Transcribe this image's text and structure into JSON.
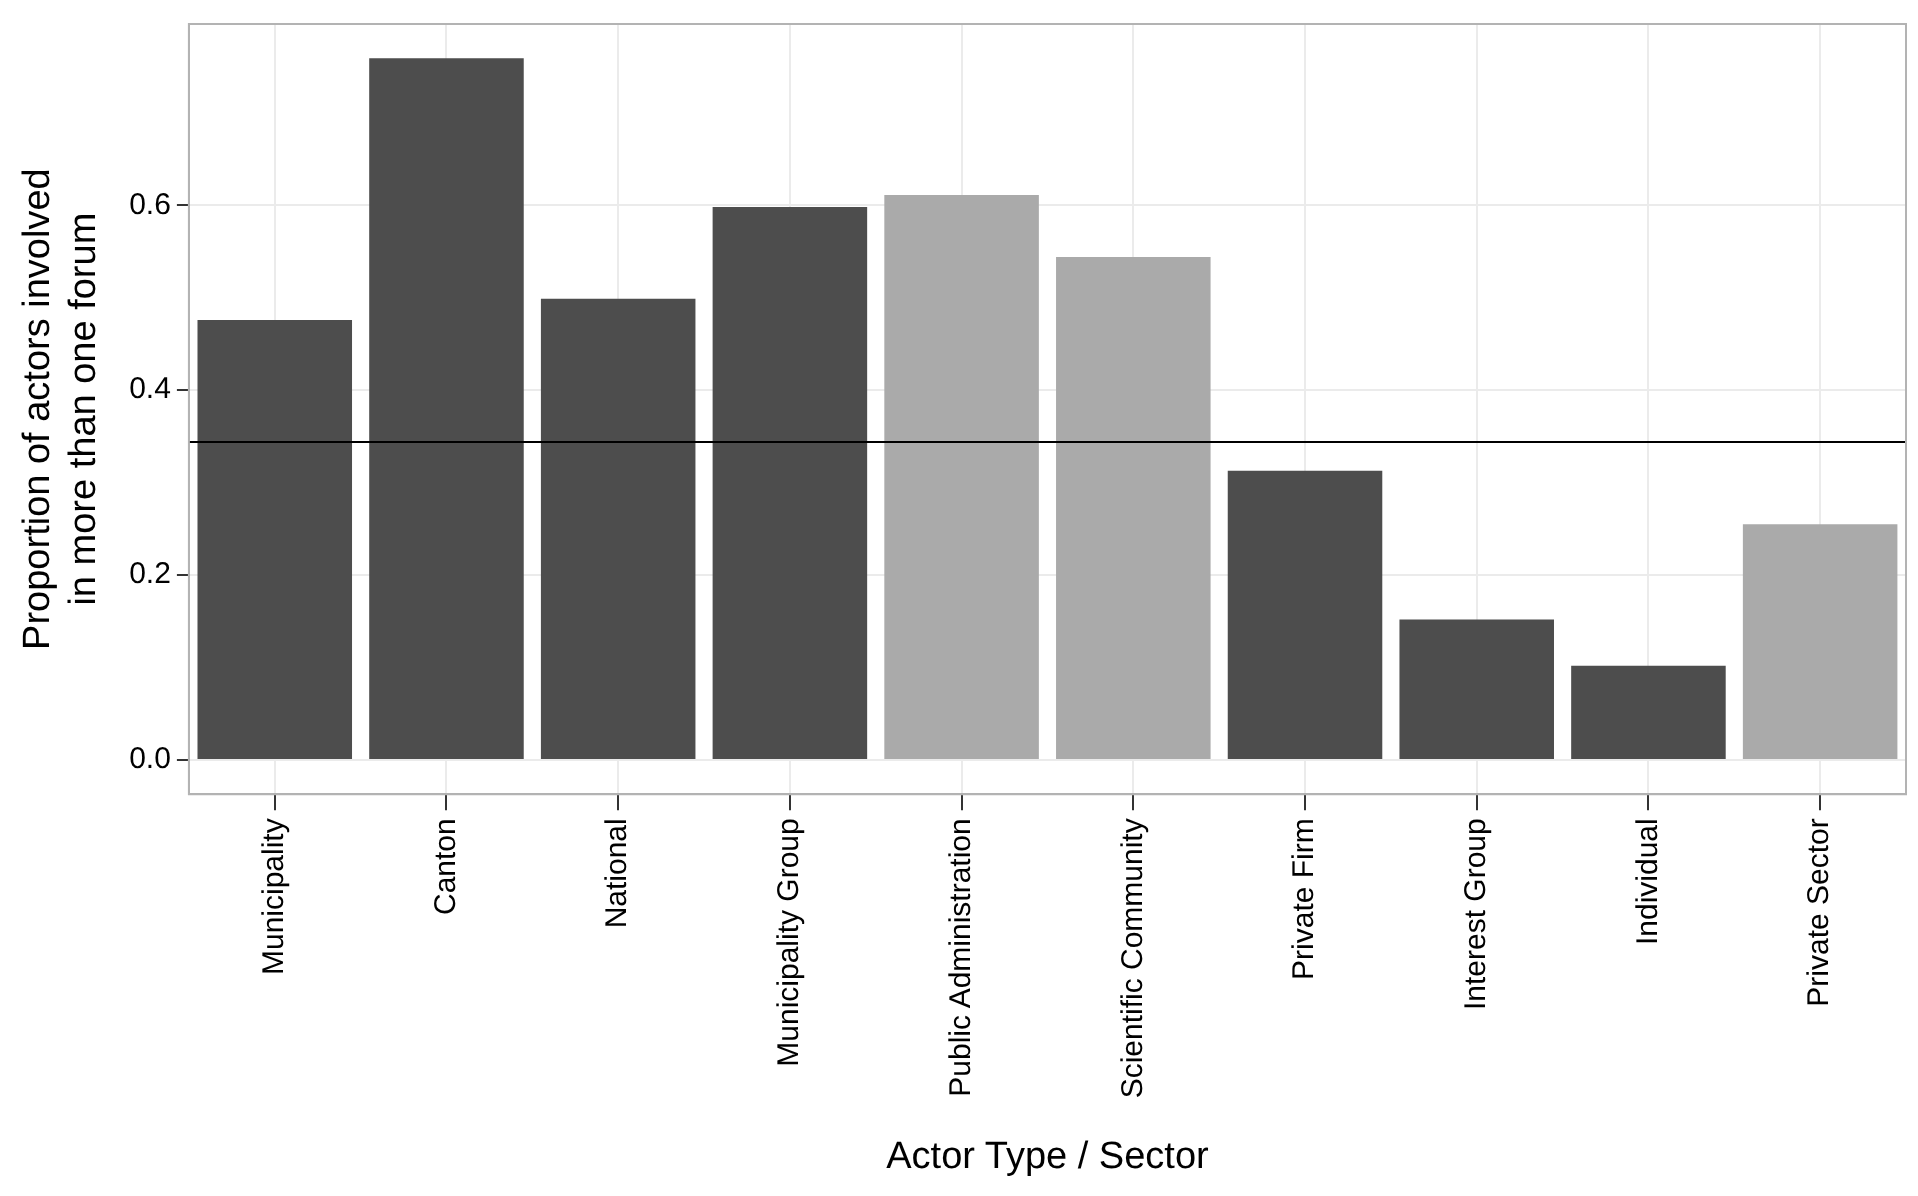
{
  "chart_data": {
    "type": "bar",
    "xlabel": "Actor Type / Sector",
    "ylabel": "Proportion of actors involved in more than one forum",
    "categories": [
      "Municipality",
      "Canton",
      "National",
      "Municipality Group",
      "Public Administration",
      "Scientific Community",
      "Private Firm",
      "Interest Group",
      "Individual",
      "Private Sector"
    ],
    "values": [
      0.476,
      0.759,
      0.499,
      0.598,
      0.611,
      0.544,
      0.313,
      0.152,
      0.102,
      0.255
    ],
    "colors": [
      "#4d4d4d",
      "#4d4d4d",
      "#4d4d4d",
      "#4d4d4d",
      "#aaaaaa",
      "#aaaaaa",
      "#4d4d4d",
      "#4d4d4d",
      "#4d4d4d",
      "#aaaaaa"
    ],
    "ylim": [
      -0.037,
      0.796
    ],
    "yticks": [
      {
        "value": 0,
        "label": "0.0"
      },
      {
        "value": 0.2,
        "label": "0.2"
      },
      {
        "value": 0.4,
        "label": "0.4"
      },
      {
        "value": 0.6,
        "label": "0.6"
      }
    ],
    "ref_lines": [
      {
        "axis": "y",
        "value": 0.344,
        "color": "#000000"
      }
    ],
    "grid": true,
    "legend": false
  }
}
